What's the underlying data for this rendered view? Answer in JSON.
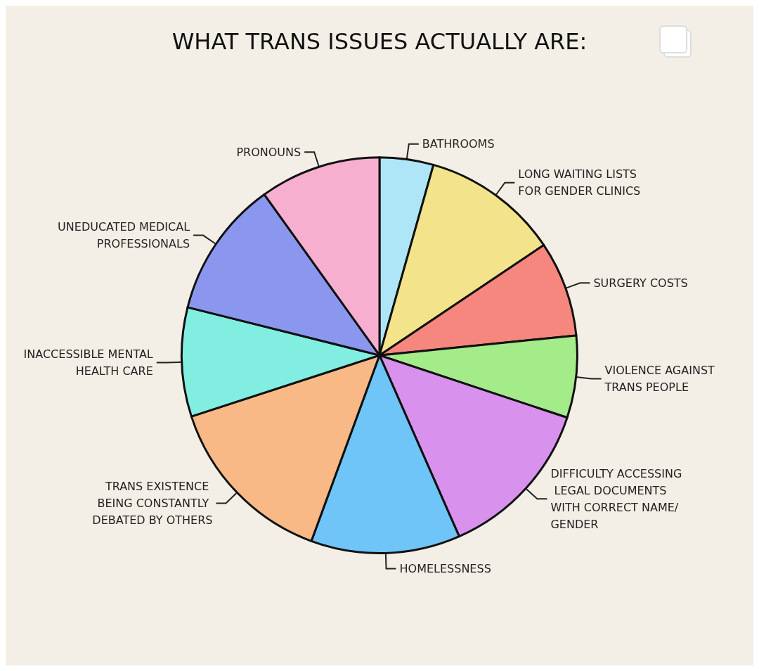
{
  "chart_data": {
    "type": "pie",
    "title": "WHAT TRANS ISSUES ACTUALLY ARE:",
    "categories": [
      "BATHROOMS",
      "LONG WAITING LISTS FOR GENDER CLINICS",
      "SURGERY COSTS",
      "VIOLENCE AGAINST TRANS PEOPLE",
      "DIFFICULTY ACCESSING LEGAL DOCUMENTS WITH CORRECT NAME/GENDER",
      "HOMELESSNESS",
      "TRANS EXISTENCE BEING CONSTANTLY DEBATED BY OTHERS",
      "INACCESSIBLE MENTAL HEALTH CARE",
      "UNEDUCATED MEDICAL PROFESSIONALS",
      "PRONOUNS"
    ],
    "values": [
      4.4,
      11.2,
      7.8,
      6.7,
      13.3,
      12.2,
      14.4,
      8.9,
      11.2,
      9.9
    ],
    "colors": [
      "#aee6f8",
      "#f3e38a",
      "#f6877e",
      "#a4ec8a",
      "#d892ee",
      "#6fc4f8",
      "#f8b986",
      "#82eee2",
      "#8b97ee",
      "#f7afd0"
    ]
  }
}
